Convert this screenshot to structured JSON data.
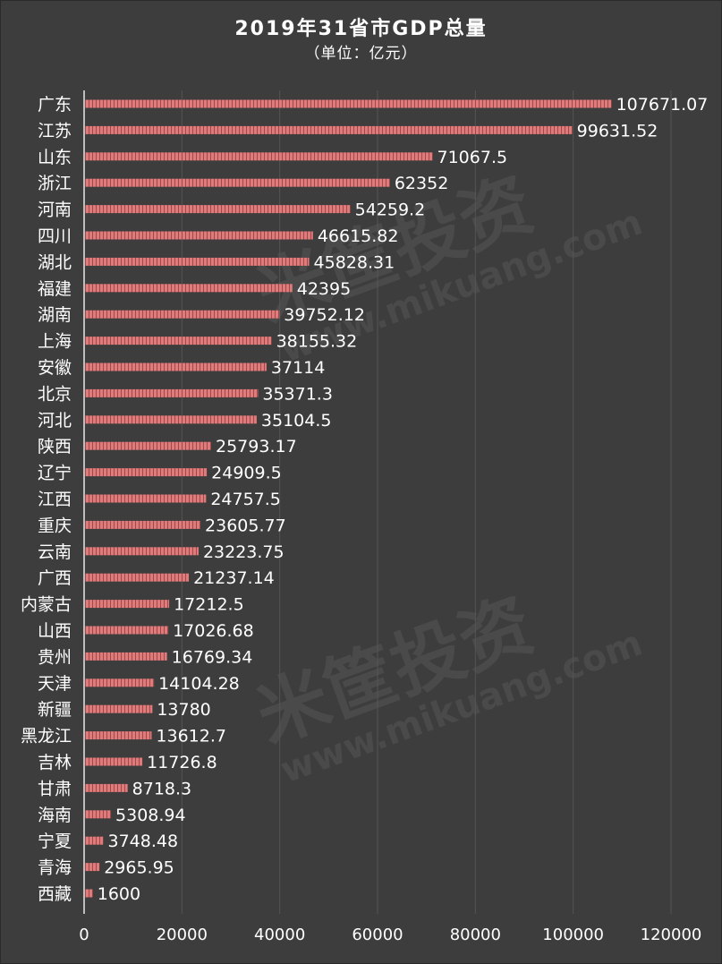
{
  "chart_data": {
    "type": "bar",
    "orientation": "horizontal",
    "title": "2019年31省市GDP总量",
    "subtitle": "（单位：亿元）",
    "categories": [
      "广东",
      "江苏",
      "山东",
      "浙江",
      "河南",
      "四川",
      "湖北",
      "福建",
      "湖南",
      "上海",
      "安徽",
      "北京",
      "河北",
      "陕西",
      "辽宁",
      "江西",
      "重庆",
      "云南",
      "广西",
      "内蒙古",
      "山西",
      "贵州",
      "天津",
      "新疆",
      "黑龙江",
      "吉林",
      "甘肃",
      "海南",
      "宁夏",
      "青海",
      "西藏"
    ],
    "values": [
      107671.07,
      99631.52,
      71067.5,
      62352,
      54259.2,
      46615.82,
      45828.31,
      42395,
      39752.12,
      38155.32,
      37114,
      35371.3,
      35104.5,
      25793.17,
      24909.5,
      24757.5,
      23605.77,
      23223.75,
      21237.14,
      17212.5,
      17026.68,
      16769.34,
      14104.28,
      13780,
      13612.7,
      11726.8,
      8718.3,
      5308.94,
      3748.48,
      2965.95,
      1600
    ],
    "value_labels": [
      "107671.07",
      "99631.52",
      "71067.5",
      "62352",
      "54259.2",
      "46615.82",
      "45828.31",
      "42395",
      "39752.12",
      "38155.32",
      "37114",
      "35371.3",
      "35104.5",
      "25793.17",
      "24909.5",
      "24757.5",
      "23605.77",
      "23223.75",
      "21237.14",
      "17212.5",
      "17026.68",
      "16769.34",
      "14104.28",
      "13780",
      "13612.7",
      "11726.8",
      "8718.3",
      "5308.94",
      "3748.48",
      "2965.95",
      "1600"
    ],
    "xlim": [
      0,
      120000
    ],
    "xticks": [
      0,
      20000,
      40000,
      60000,
      80000,
      100000,
      120000
    ],
    "xtick_labels": [
      "0",
      "20000",
      "40000",
      "60000",
      "80000",
      "100000",
      "120000"
    ],
    "grid": true,
    "colors": {
      "bar": "#e07b7b",
      "bar_stripe": "#9e4a4a",
      "grid": "#555555",
      "axis": "#bdbdbd"
    }
  },
  "watermark": {
    "brand": "米筐投资",
    "url": "www.mikuang.com"
  }
}
